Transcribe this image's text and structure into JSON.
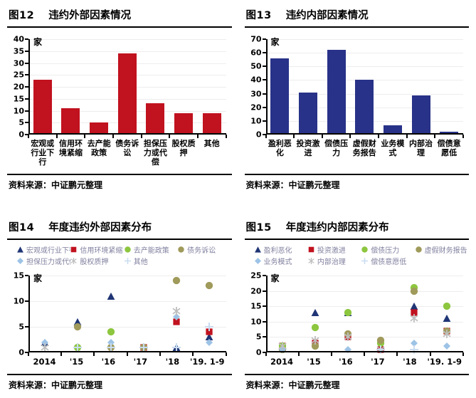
{
  "panels": [
    {
      "figure_no": "图12",
      "title": "违约外部因素情况",
      "source": "资料来源：中证鹏元整理",
      "chart_data": {
        "type": "bar",
        "title": "违约外部因素情况",
        "ylabel": "家",
        "bar_color": "#c1121f",
        "ylim": [
          0,
          40
        ],
        "ytick_step": 5,
        "grid": true,
        "categories": [
          "宏观或行业下行",
          "信用环境紧缩",
          "去产能政策",
          "债务诉讼",
          "担保压力或代偿",
          "股权质押",
          "其他"
        ],
        "values": [
          23,
          11,
          5,
          34,
          13,
          9,
          9
        ]
      }
    },
    {
      "figure_no": "图13",
      "title": "违约内部因素情况",
      "source": "资料来源：中证鹏元整理",
      "chart_data": {
        "type": "bar",
        "title": "违约内部因素情况",
        "ylabel": "家",
        "bar_color": "#283288",
        "ylim": [
          0,
          70
        ],
        "ytick_step": 10,
        "grid": true,
        "categories": [
          "盈利恶化",
          "投资激进",
          "偿债压力",
          "虚假财务报告",
          "业务模式",
          "内部治理",
          "偿债意愿低"
        ],
        "values": [
          56,
          31,
          62,
          40,
          7,
          29,
          2
        ]
      }
    },
    {
      "figure_no": "图14",
      "title": "年度违约外部因素分布",
      "source": "资料来源：中证鹏元整理",
      "chart_data": {
        "type": "scatter",
        "title": "年度违约外部因素分布",
        "ylabel": "家",
        "ylim": [
          0,
          15
        ],
        "ytick_step": 5,
        "grid": true,
        "legend_position": "top",
        "x_categories": [
          "2014",
          "'15",
          "'16",
          "'17",
          "'18",
          "'19. 1-9"
        ],
        "series": [
          {
            "name": "宏观或行业下行",
            "marker": "triangle",
            "color": "#1f3575",
            "values": [
              2,
              6,
              11,
              null,
              1,
              3
            ]
          },
          {
            "name": "信用环境紧缩",
            "marker": "square",
            "color": "#c1121f",
            "values": [
              null,
              null,
              null,
              1,
              6,
              4
            ]
          },
          {
            "name": "去产能政策",
            "marker": "circle",
            "color": "#8dc63f",
            "values": [
              null,
              1,
              4,
              null,
              null,
              null
            ]
          },
          {
            "name": "债务诉讼",
            "marker": "circle",
            "color": "#a09a5b",
            "values": [
              null,
              5,
              1,
              1,
              14,
              13
            ]
          },
          {
            "name": "担保压力或代偿",
            "marker": "diamond",
            "color": "#9dc3e6",
            "values": [
              2,
              null,
              2,
              null,
              7,
              2
            ]
          },
          {
            "name": "股权质押",
            "marker": "asterisk",
            "color": "#bfbfbf",
            "values": [
              1,
              null,
              null,
              null,
              8,
              null
            ]
          },
          {
            "name": "其他",
            "marker": "plus",
            "color": "#c9dcf0",
            "values": [
              null,
              1,
              1,
              1,
              1,
              5
            ]
          }
        ]
      }
    },
    {
      "figure_no": "图15",
      "title": "年度违约内部因素分布",
      "source": "资料来源：中证鹏元整理",
      "chart_data": {
        "type": "scatter",
        "title": "年度违约内部因素分布",
        "ylabel": "家",
        "ylim": [
          0,
          25
        ],
        "ytick_step": 5,
        "grid": true,
        "legend_position": "top",
        "x_categories": [
          "2014",
          "'15",
          "'16",
          "'17",
          "'18",
          "'19. 1-9"
        ],
        "series": [
          {
            "name": "盈利恶化",
            "marker": "triangle",
            "color": "#1f3575",
            "values": [
              2,
              13,
              13,
              2,
              15,
              11
            ]
          },
          {
            "name": "投资激进",
            "marker": "square",
            "color": "#c1121f",
            "values": [
              2,
              3,
              5,
              1,
              13,
              7
            ]
          },
          {
            "name": "偿债压力",
            "marker": "circle",
            "color": "#8dc63f",
            "values": [
              2,
              8,
              13,
              3,
              21,
              15
            ]
          },
          {
            "name": "虚假财务报告",
            "marker": "circle",
            "color": "#a09a5b",
            "values": [
              1,
              2,
              6,
              4,
              20,
              7
            ]
          },
          {
            "name": "业务模式",
            "marker": "diamond",
            "color": "#9dc3e6",
            "values": [
              1,
              null,
              1,
              null,
              3,
              2
            ]
          },
          {
            "name": "内部治理",
            "marker": "asterisk",
            "color": "#bfbfbf",
            "values": [
              2,
              4,
              5,
              1,
              11,
              6
            ]
          },
          {
            "name": "偿债意愿低",
            "marker": "plus",
            "color": "#c9dcf0",
            "values": [
              null,
              null,
              null,
              1,
              1,
              null
            ]
          }
        ]
      }
    }
  ]
}
